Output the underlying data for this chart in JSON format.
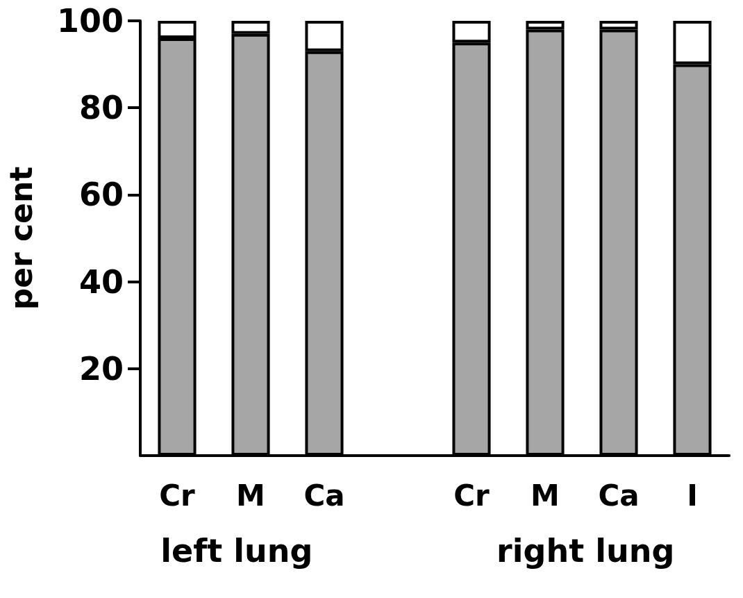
{
  "chart_data": {
    "type": "bar",
    "stacked": true,
    "ylabel": "per cent",
    "categories": [
      "Cr",
      "M",
      "Ca",
      null,
      "Cr",
      "M",
      "Ca",
      "I"
    ],
    "series": [
      {
        "color": "#a6a6a6",
        "values": [
          96,
          97,
          93,
          null,
          95,
          98,
          98,
          90
        ]
      },
      {
        "color": "#ffffff",
        "values": [
          4,
          3,
          7,
          null,
          5,
          2,
          2,
          10
        ]
      }
    ],
    "ylim": [
      0,
      100
    ],
    "yticks": [
      20,
      40,
      60,
      80,
      100
    ],
    "grid": false,
    "annotations": [
      "left lung",
      "right lung"
    ]
  }
}
